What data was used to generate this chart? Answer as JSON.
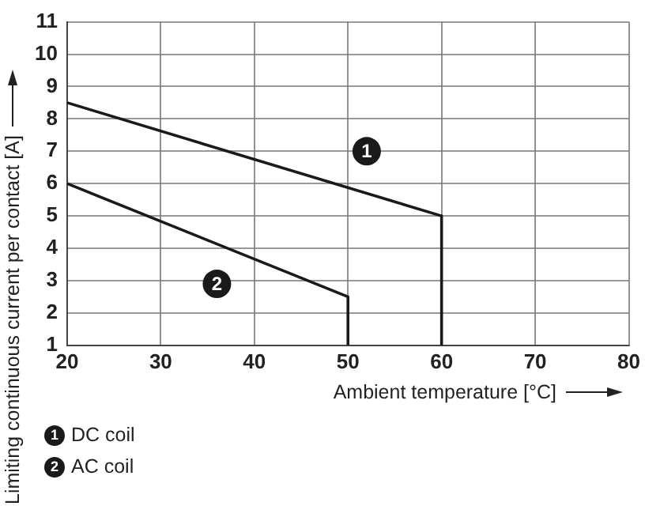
{
  "chart_data": {
    "type": "line",
    "xlabel": "Ambient temperature [°C]",
    "ylabel": "Limiting continuous current per contact [A]",
    "series": [
      {
        "name": "DC coil",
        "color": "#1a1a1a",
        "x": [
          20,
          60,
          60
        ],
        "values": [
          8.5,
          5,
          1
        ]
      },
      {
        "name": "AC coil",
        "color": "#1a1a1a",
        "x": [
          20,
          50,
          50
        ],
        "values": [
          6,
          2.5,
          1
        ]
      }
    ],
    "annotations": [
      {
        "text": "1",
        "x": 52,
        "y": 7
      },
      {
        "text": "2",
        "x": 36,
        "y": 2.9
      }
    ],
    "xlim": [
      20,
      80
    ],
    "xticks": [
      20,
      30,
      40,
      50,
      60,
      70,
      80
    ],
    "ylim": [
      1,
      11
    ],
    "yticks": [
      1,
      2,
      3,
      4,
      5,
      6,
      7,
      8,
      9,
      10,
      11
    ],
    "grid": true,
    "legend": "bottom left",
    "marker": "none",
    "line_style": "solid"
  }
}
